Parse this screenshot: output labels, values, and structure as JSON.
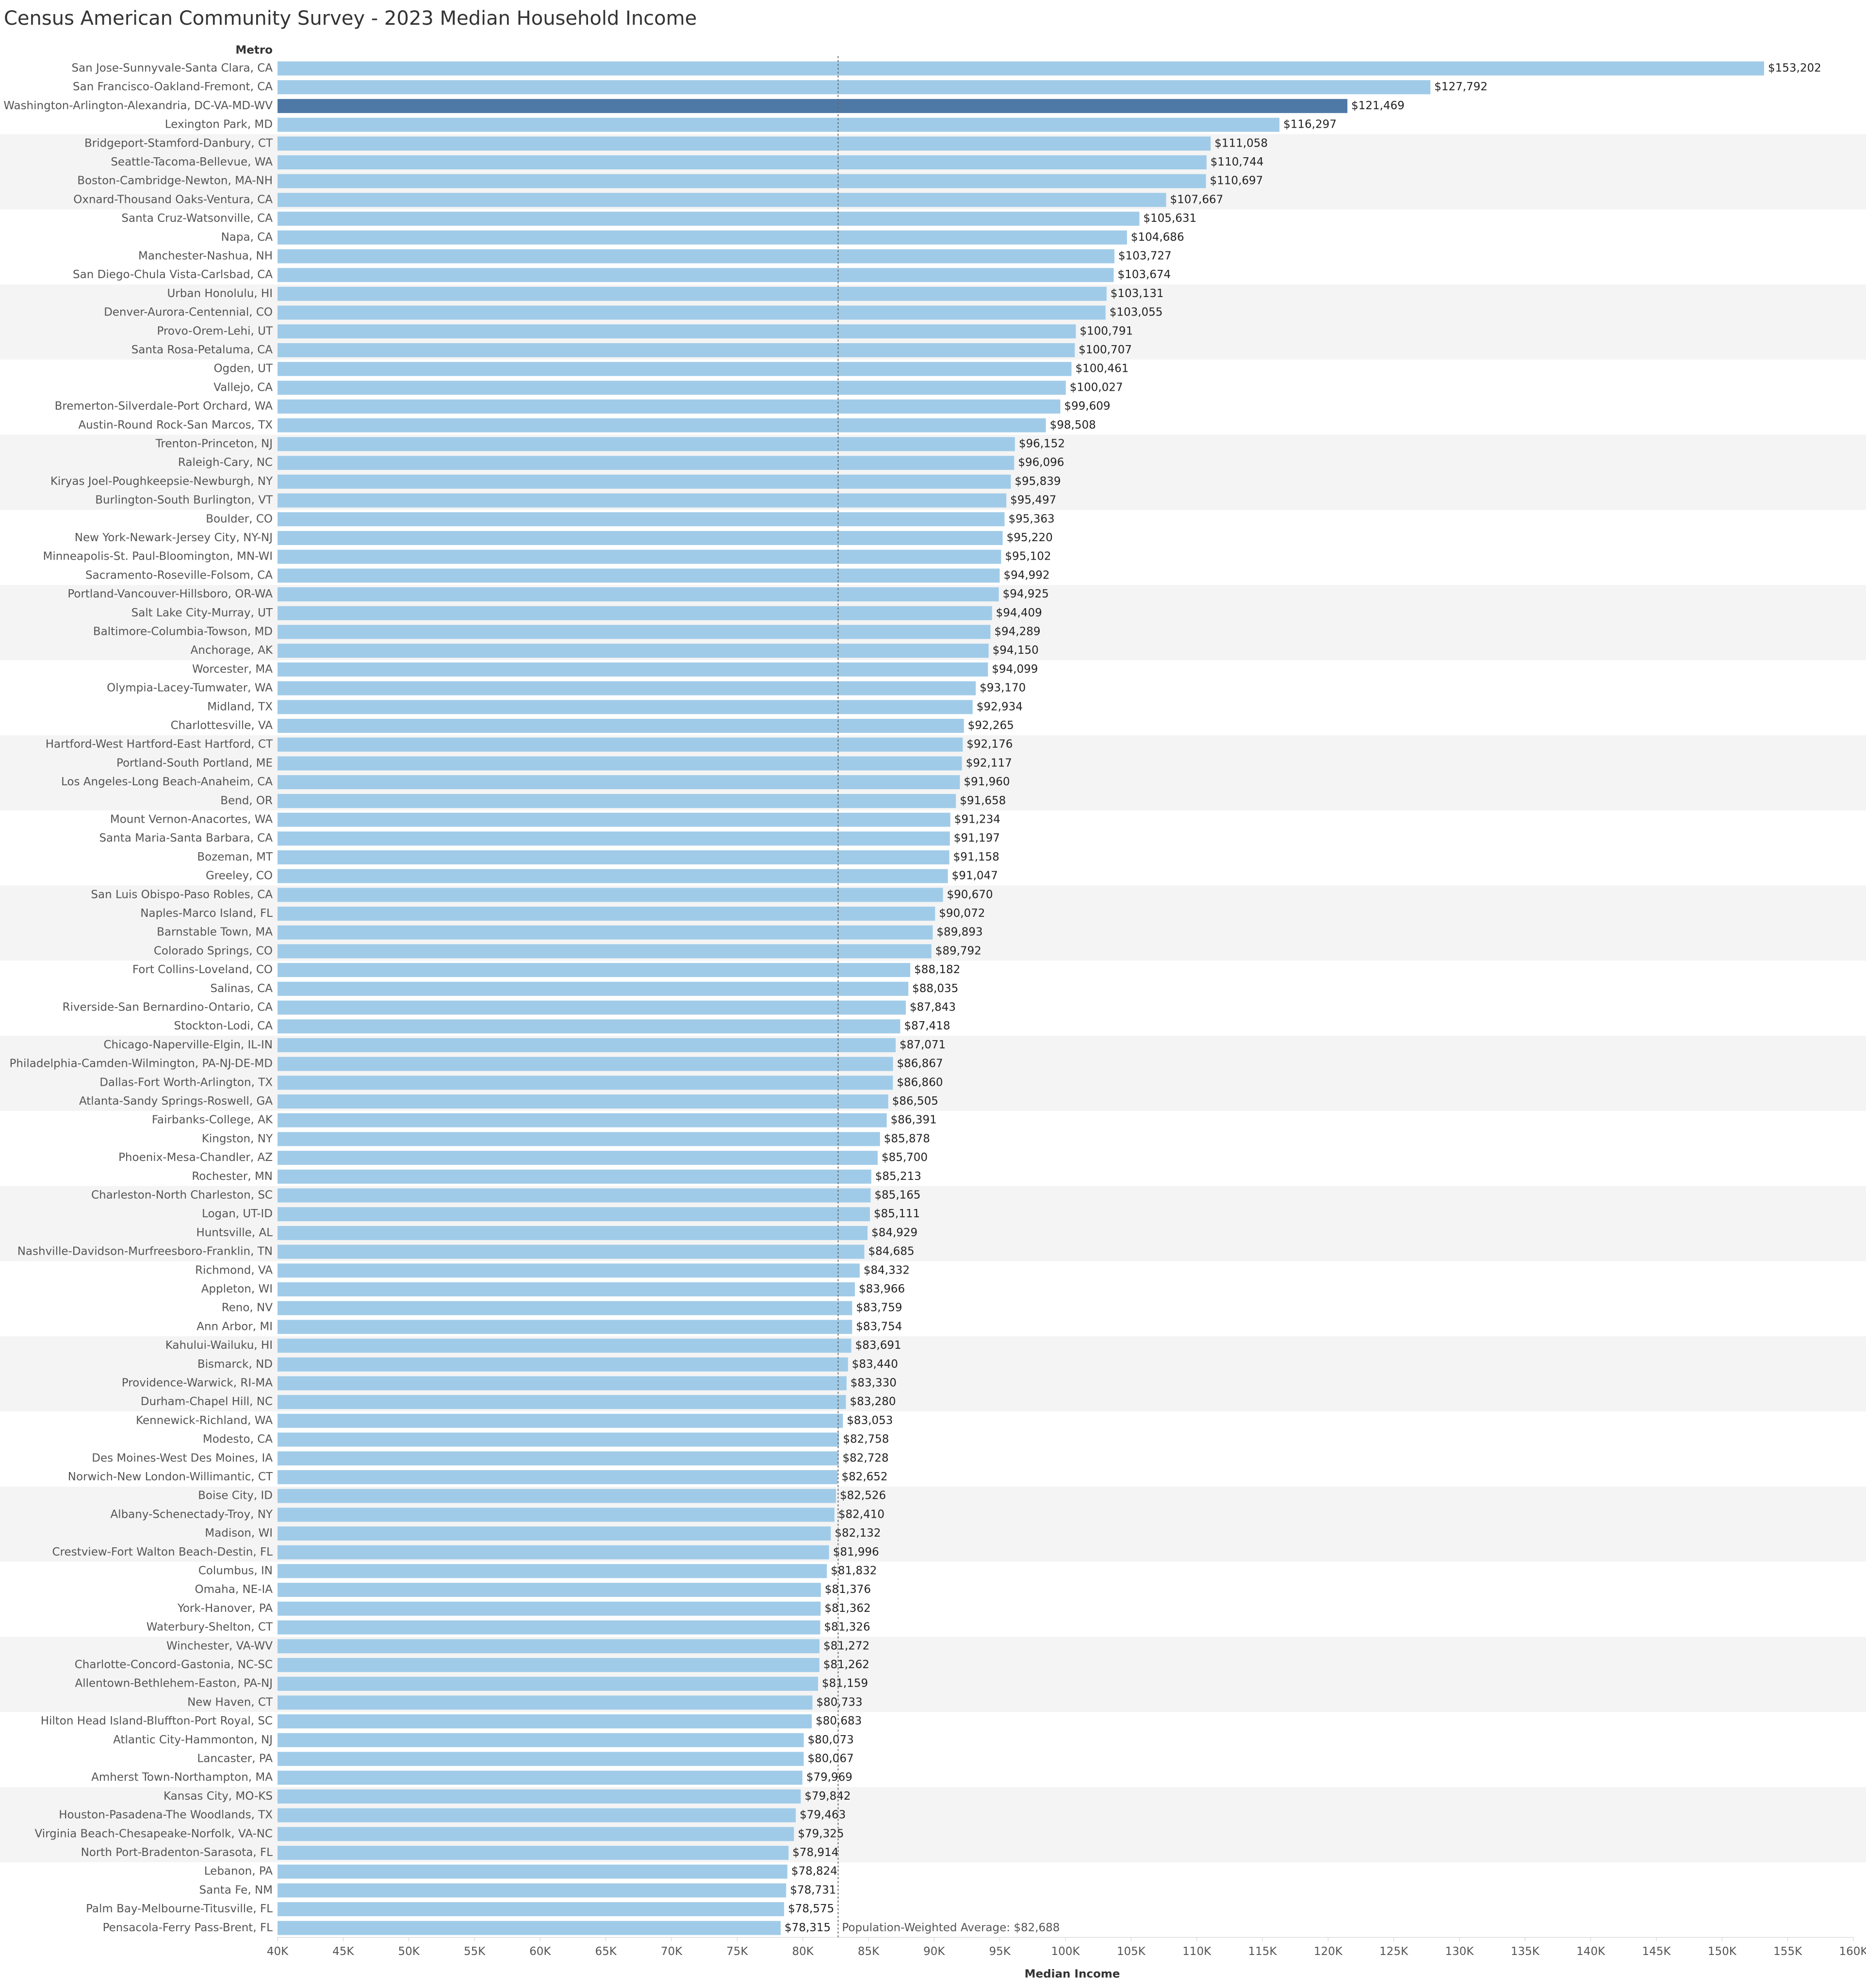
{
  "chart_data": {
    "type": "bar",
    "orientation": "horizontal",
    "title": "Census American Community Survey - 2023 Median Household Income",
    "category_header": "Metro",
    "x_label": "Median Income",
    "color": "#a0cbe8",
    "highlight_color": "#4e79a7",
    "highlight_index": 2,
    "xlim": [
      40000,
      160000
    ],
    "xticks": [
      {
        "value": 40000,
        "label": "40K"
      },
      {
        "value": 45000,
        "label": "45K"
      },
      {
        "value": 50000,
        "label": "50K"
      },
      {
        "value": 55000,
        "label": "55K"
      },
      {
        "value": 60000,
        "label": "60K"
      },
      {
        "value": 65000,
        "label": "65K"
      },
      {
        "value": 70000,
        "label": "70K"
      },
      {
        "value": 75000,
        "label": "75K"
      },
      {
        "value": 80000,
        "label": "80K"
      },
      {
        "value": 85000,
        "label": "85K"
      },
      {
        "value": 90000,
        "label": "90K"
      },
      {
        "value": 95000,
        "label": "95K"
      },
      {
        "value": 100000,
        "label": "100K"
      },
      {
        "value": 105000,
        "label": "105K"
      },
      {
        "value": 110000,
        "label": "110K"
      },
      {
        "value": 115000,
        "label": "115K"
      },
      {
        "value": 120000,
        "label": "120K"
      },
      {
        "value": 125000,
        "label": "125K"
      },
      {
        "value": 130000,
        "label": "130K"
      },
      {
        "value": 135000,
        "label": "135K"
      },
      {
        "value": 140000,
        "label": "140K"
      },
      {
        "value": 145000,
        "label": "145K"
      },
      {
        "value": 150000,
        "label": "150K"
      },
      {
        "value": 155000,
        "label": "155K"
      },
      {
        "value": 160000,
        "label": "160K"
      }
    ],
    "reference_line": {
      "value": 82688,
      "label": "Population-Weighted Average: $82,688"
    },
    "categories": [
      "San Jose-Sunnyvale-Santa Clara, CA",
      "San Francisco-Oakland-Fremont, CA",
      "Washington-Arlington-Alexandria, DC-VA-MD-WV",
      "Lexington Park, MD",
      "Bridgeport-Stamford-Danbury, CT",
      "Seattle-Tacoma-Bellevue, WA",
      "Boston-Cambridge-Newton, MA-NH",
      "Oxnard-Thousand Oaks-Ventura, CA",
      "Santa Cruz-Watsonville, CA",
      "Napa, CA",
      "Manchester-Nashua, NH",
      "San Diego-Chula Vista-Carlsbad, CA",
      "Urban Honolulu, HI",
      "Denver-Aurora-Centennial, CO",
      "Provo-Orem-Lehi, UT",
      "Santa Rosa-Petaluma, CA",
      "Ogden, UT",
      "Vallejo, CA",
      "Bremerton-Silverdale-Port Orchard, WA",
      "Austin-Round Rock-San Marcos, TX",
      "Trenton-Princeton, NJ",
      "Raleigh-Cary, NC",
      "Kiryas Joel-Poughkeepsie-Newburgh, NY",
      "Burlington-South Burlington, VT",
      "Boulder, CO",
      "New York-Newark-Jersey City, NY-NJ",
      "Minneapolis-St. Paul-Bloomington, MN-WI",
      "Sacramento-Roseville-Folsom, CA",
      "Portland-Vancouver-Hillsboro, OR-WA",
      "Salt Lake City-Murray, UT",
      "Baltimore-Columbia-Towson, MD",
      "Anchorage, AK",
      "Worcester, MA",
      "Olympia-Lacey-Tumwater, WA",
      "Midland, TX",
      "Charlottesville, VA",
      "Hartford-West Hartford-East Hartford, CT",
      "Portland-South Portland, ME",
      "Los Angeles-Long Beach-Anaheim, CA",
      "Bend, OR",
      "Mount Vernon-Anacortes, WA",
      "Santa Maria-Santa Barbara, CA",
      "Bozeman, MT",
      "Greeley, CO",
      "San Luis Obispo-Paso Robles, CA",
      "Naples-Marco Island, FL",
      "Barnstable Town, MA",
      "Colorado Springs, CO",
      "Fort Collins-Loveland, CO",
      "Salinas, CA",
      "Riverside-San Bernardino-Ontario, CA",
      "Stockton-Lodi, CA",
      "Chicago-Naperville-Elgin, IL-IN",
      "Philadelphia-Camden-Wilmington, PA-NJ-DE-MD",
      "Dallas-Fort Worth-Arlington, TX",
      "Atlanta-Sandy Springs-Roswell, GA",
      "Fairbanks-College, AK",
      "Kingston, NY",
      "Phoenix-Mesa-Chandler, AZ",
      "Rochester, MN",
      "Charleston-North Charleston, SC",
      "Logan, UT-ID",
      "Huntsville, AL",
      "Nashville-Davidson-Murfreesboro-Franklin, TN",
      "Richmond, VA",
      "Appleton, WI",
      "Reno, NV",
      "Ann Arbor, MI",
      "Kahului-Wailuku, HI",
      "Bismarck, ND",
      "Providence-Warwick, RI-MA",
      "Durham-Chapel Hill, NC",
      "Kennewick-Richland, WA",
      "Modesto, CA",
      "Des Moines-West Des Moines, IA",
      "Norwich-New London-Willimantic, CT",
      "Boise City, ID",
      "Albany-Schenectady-Troy, NY",
      "Madison, WI",
      "Crestview-Fort Walton Beach-Destin, FL",
      "Columbus, IN",
      "Omaha, NE-IA",
      "York-Hanover, PA",
      "Waterbury-Shelton, CT",
      "Winchester, VA-WV",
      "Charlotte-Concord-Gastonia, NC-SC",
      "Allentown-Bethlehem-Easton, PA-NJ",
      "New Haven, CT",
      "Hilton Head Island-Bluffton-Port Royal, SC",
      "Atlantic City-Hammonton, NJ",
      "Lancaster, PA",
      "Amherst Town-Northampton, MA",
      "Kansas City, MO-KS",
      "Houston-Pasadena-The Woodlands, TX",
      "Virginia Beach-Chesapeake-Norfolk, VA-NC",
      "North Port-Bradenton-Sarasota, FL",
      "Lebanon, PA",
      "Santa Fe, NM",
      "Palm Bay-Melbourne-Titusville, FL",
      "Pensacola-Ferry Pass-Brent, FL"
    ],
    "values": [
      153202,
      127792,
      121469,
      116297,
      111058,
      110744,
      110697,
      107667,
      105631,
      104686,
      103727,
      103674,
      103131,
      103055,
      100791,
      100707,
      100461,
      100027,
      99609,
      98508,
      96152,
      96096,
      95839,
      95497,
      95363,
      95220,
      95102,
      94992,
      94925,
      94409,
      94289,
      94150,
      94099,
      93170,
      92934,
      92265,
      92176,
      92117,
      91960,
      91658,
      91234,
      91197,
      91158,
      91047,
      90670,
      90072,
      89893,
      89792,
      88182,
      88035,
      87843,
      87418,
      87071,
      86867,
      86860,
      86505,
      86391,
      85878,
      85700,
      85213,
      85165,
      85111,
      84929,
      84685,
      84332,
      83966,
      83759,
      83754,
      83691,
      83440,
      83330,
      83280,
      83053,
      82758,
      82728,
      82652,
      82526,
      82410,
      82132,
      81996,
      81832,
      81376,
      81362,
      81326,
      81272,
      81262,
      81159,
      80733,
      80683,
      80073,
      80067,
      79969,
      79842,
      79463,
      79325,
      78914,
      78824,
      78731,
      78575,
      78315
    ],
    "value_labels": [
      "$153,202",
      "$127,792",
      "$121,469",
      "$116,297",
      "$111,058",
      "$110,744",
      "$110,697",
      "$107,667",
      "$105,631",
      "$104,686",
      "$103,727",
      "$103,674",
      "$103,131",
      "$103,055",
      "$100,791",
      "$100,707",
      "$100,461",
      "$100,027",
      "$99,609",
      "$98,508",
      "$96,152",
      "$96,096",
      "$95,839",
      "$95,497",
      "$95,363",
      "$95,220",
      "$95,102",
      "$94,992",
      "$94,925",
      "$94,409",
      "$94,289",
      "$94,150",
      "$94,099",
      "$93,170",
      "$92,934",
      "$92,265",
      "$92,176",
      "$92,117",
      "$91,960",
      "$91,658",
      "$91,234",
      "$91,197",
      "$91,158",
      "$91,047",
      "$90,670",
      "$90,072",
      "$89,893",
      "$89,792",
      "$88,182",
      "$88,035",
      "$87,843",
      "$87,418",
      "$87,071",
      "$86,867",
      "$86,860",
      "$86,505",
      "$86,391",
      "$85,878",
      "$85,700",
      "$85,213",
      "$85,165",
      "$85,111",
      "$84,929",
      "$84,685",
      "$84,332",
      "$83,966",
      "$83,759",
      "$83,754",
      "$83,691",
      "$83,440",
      "$83,330",
      "$83,280",
      "$83,053",
      "$82,758",
      "$82,728",
      "$82,652",
      "$82,526",
      "$82,410",
      "$82,132",
      "$81,996",
      "$81,832",
      "$81,376",
      "$81,362",
      "$81,326",
      "$81,272",
      "$81,262",
      "$81,159",
      "$80,733",
      "$80,683",
      "$80,073",
      "$80,067",
      "$79,969",
      "$79,842",
      "$79,463",
      "$79,325",
      "$78,914",
      "$78,824",
      "$78,731",
      "$78,575",
      "$78,315"
    ]
  }
}
